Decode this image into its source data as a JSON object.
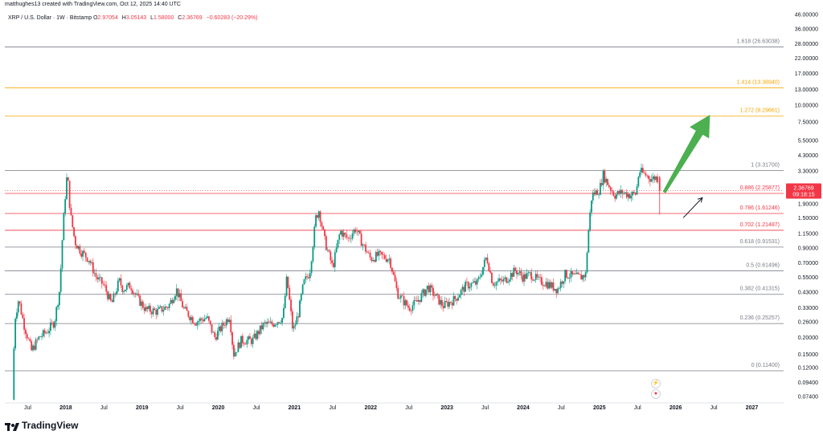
{
  "header": {
    "credit": "matthughes13 created with TradingView.com, Oct 12, 2025 14:40 UTC",
    "symbol": "XRP / U.S. Dollar · 1W · Bitstamp",
    "open_key": "O",
    "open_val": "2.97054",
    "high_key": "H",
    "high_val": "3.05143",
    "low_key": "L",
    "low_val": "1.58000",
    "close_key": "C",
    "close_val": "2.36769",
    "change": "−0.60283 (−20.29%)"
  },
  "price_tag": {
    "price": "2.36769",
    "countdown": "09:18:15"
  },
  "brand": {
    "name": "TradingView"
  },
  "colors": {
    "up": "#089981",
    "down": "#f23645",
    "fib_orange": "#f7a600",
    "arrow_green": "#4caf50"
  },
  "chart_data": {
    "type": "candlestick",
    "scale": "log",
    "ylim": [
      0.07,
      46
    ],
    "y_ticks": [
      "46.00000",
      "36.00000",
      "28.00000",
      "22.00000",
      "17.00000",
      "13.00000",
      "10.00000",
      "7.50000",
      "5.50000",
      "4.30000",
      "3.30000",
      "2.50000",
      "1.90000",
      "1.50000",
      "1.15000",
      "0.90000",
      "0.70000",
      "0.55000",
      "0.43000",
      "0.33000",
      "0.26000",
      "0.20000",
      "0.15000",
      "0.12000",
      "0.09400",
      "0.07400"
    ],
    "x_ticks": [
      "Jul",
      "2018",
      "Jul",
      "2019",
      "Jul",
      "2020",
      "Jul",
      "2021",
      "Jul",
      "2022",
      "Jul",
      "2023",
      "Jul",
      "2024",
      "Jul",
      "2025",
      "Jul",
      "2026",
      "Jul",
      "2027"
    ],
    "fib_levels": [
      {
        "label": "0 (0.11400)",
        "value": 0.114,
        "color": "#787b86"
      },
      {
        "label": "0.236 (0.25257)",
        "value": 0.25257,
        "color": "#787b86"
      },
      {
        "label": "0.382 (0.41315)",
        "value": 0.41315,
        "color": "#787b86"
      },
      {
        "label": "0.5 (0.61496)",
        "value": 0.61496,
        "color": "#787b86"
      },
      {
        "label": "0.618 (0.91531)",
        "value": 0.91531,
        "color": "#787b86"
      },
      {
        "label": "0.702 (1.21487)",
        "value": 1.21487,
        "color": "#f23645"
      },
      {
        "label": "0.786 (1.61246)",
        "value": 1.61246,
        "color": "#f23645"
      },
      {
        "label": "0.886 (2.25877)",
        "value": 2.25877,
        "color": "#f23645"
      },
      {
        "label": "1 (3.31700)",
        "value": 3.317,
        "color": "#787b86"
      },
      {
        "label": "1.272 (8.29661)",
        "value": 8.29661,
        "color": "#f7a600"
      },
      {
        "label": "1.414 (13.38940)",
        "value": 13.3894,
        "color": "#f7a600"
      },
      {
        "label": "1.618 (26.63038)",
        "value": 26.63038,
        "color": "#787b86"
      }
    ],
    "price_path": [
      {
        "t": 2017.3,
        "v": 0.07
      },
      {
        "t": 2017.33,
        "v": 0.27
      },
      {
        "t": 2017.38,
        "v": 0.38
      },
      {
        "t": 2017.45,
        "v": 0.25
      },
      {
        "t": 2017.55,
        "v": 0.16
      },
      {
        "t": 2017.65,
        "v": 0.2
      },
      {
        "t": 2017.75,
        "v": 0.22
      },
      {
        "t": 2017.85,
        "v": 0.26
      },
      {
        "t": 2017.92,
        "v": 0.45
      },
      {
        "t": 2017.96,
        "v": 1.2
      },
      {
        "t": 2018.0,
        "v": 2.5
      },
      {
        "t": 2018.02,
        "v": 3.2
      },
      {
        "t": 2018.06,
        "v": 1.6
      },
      {
        "t": 2018.12,
        "v": 1.0
      },
      {
        "t": 2018.2,
        "v": 0.85
      },
      {
        "t": 2018.3,
        "v": 0.75
      },
      {
        "t": 2018.4,
        "v": 0.55
      },
      {
        "t": 2018.5,
        "v": 0.48
      },
      {
        "t": 2018.6,
        "v": 0.35
      },
      {
        "t": 2018.7,
        "v": 0.52
      },
      {
        "t": 2018.75,
        "v": 0.45
      },
      {
        "t": 2018.85,
        "v": 0.48
      },
      {
        "t": 2018.95,
        "v": 0.38
      },
      {
        "t": 2019.05,
        "v": 0.32
      },
      {
        "t": 2019.2,
        "v": 0.31
      },
      {
        "t": 2019.35,
        "v": 0.34
      },
      {
        "t": 2019.45,
        "v": 0.45
      },
      {
        "t": 2019.55,
        "v": 0.32
      },
      {
        "t": 2019.7,
        "v": 0.26
      },
      {
        "t": 2019.85,
        "v": 0.28
      },
      {
        "t": 2019.95,
        "v": 0.2
      },
      {
        "t": 2020.05,
        "v": 0.24
      },
      {
        "t": 2020.15,
        "v": 0.29
      },
      {
        "t": 2020.2,
        "v": 0.15
      },
      {
        "t": 2020.3,
        "v": 0.19
      },
      {
        "t": 2020.45,
        "v": 0.19
      },
      {
        "t": 2020.6,
        "v": 0.25
      },
      {
        "t": 2020.7,
        "v": 0.25
      },
      {
        "t": 2020.85,
        "v": 0.28
      },
      {
        "t": 2020.9,
        "v": 0.55
      },
      {
        "t": 2020.98,
        "v": 0.22
      },
      {
        "t": 2021.05,
        "v": 0.3
      },
      {
        "t": 2021.12,
        "v": 0.5
      },
      {
        "t": 2021.2,
        "v": 0.6
      },
      {
        "t": 2021.28,
        "v": 1.5
      },
      {
        "t": 2021.32,
        "v": 1.7
      },
      {
        "t": 2021.4,
        "v": 1.0
      },
      {
        "t": 2021.5,
        "v": 0.65
      },
      {
        "t": 2021.6,
        "v": 1.2
      },
      {
        "t": 2021.7,
        "v": 1.05
      },
      {
        "t": 2021.8,
        "v": 1.25
      },
      {
        "t": 2021.9,
        "v": 0.95
      },
      {
        "t": 2022.0,
        "v": 0.75
      },
      {
        "t": 2022.1,
        "v": 0.8
      },
      {
        "t": 2022.25,
        "v": 0.75
      },
      {
        "t": 2022.35,
        "v": 0.42
      },
      {
        "t": 2022.5,
        "v": 0.33
      },
      {
        "t": 2022.6,
        "v": 0.36
      },
      {
        "t": 2022.75,
        "v": 0.47
      },
      {
        "t": 2022.85,
        "v": 0.4
      },
      {
        "t": 2022.95,
        "v": 0.34
      },
      {
        "t": 2023.1,
        "v": 0.38
      },
      {
        "t": 2023.25,
        "v": 0.48
      },
      {
        "t": 2023.4,
        "v": 0.5
      },
      {
        "t": 2023.52,
        "v": 0.78
      },
      {
        "t": 2023.6,
        "v": 0.5
      },
      {
        "t": 2023.75,
        "v": 0.52
      },
      {
        "t": 2023.9,
        "v": 0.62
      },
      {
        "t": 2024.0,
        "v": 0.55
      },
      {
        "t": 2024.1,
        "v": 0.58
      },
      {
        "t": 2024.2,
        "v": 0.52
      },
      {
        "t": 2024.3,
        "v": 0.5
      },
      {
        "t": 2024.45,
        "v": 0.45
      },
      {
        "t": 2024.55,
        "v": 0.58
      },
      {
        "t": 2024.65,
        "v": 0.56
      },
      {
        "t": 2024.75,
        "v": 0.55
      },
      {
        "t": 2024.82,
        "v": 0.58
      },
      {
        "t": 2024.85,
        "v": 1.1
      },
      {
        "t": 2024.9,
        "v": 2.2
      },
      {
        "t": 2024.95,
        "v": 2.3
      },
      {
        "t": 2025.0,
        "v": 2.4
      },
      {
        "t": 2025.05,
        "v": 3.1
      },
      {
        "t": 2025.12,
        "v": 2.6
      },
      {
        "t": 2025.2,
        "v": 2.2
      },
      {
        "t": 2025.3,
        "v": 2.3
      },
      {
        "t": 2025.4,
        "v": 2.2
      },
      {
        "t": 2025.48,
        "v": 2.25
      },
      {
        "t": 2025.52,
        "v": 3.3
      },
      {
        "t": 2025.6,
        "v": 3.1
      },
      {
        "t": 2025.68,
        "v": 2.9
      },
      {
        "t": 2025.76,
        "v": 2.97
      },
      {
        "t": 2025.78,
        "v": 2.37
      }
    ],
    "annotations": [
      {
        "type": "arrow",
        "from": {
          "t": 2025.85,
          "v": 2.3
        },
        "to": {
          "t": 2026.45,
          "v": 8.5
        },
        "color": "#4caf50"
      },
      {
        "type": "arrow",
        "from": {
          "t": 2026.1,
          "v": 1.5
        },
        "to": {
          "t": 2026.35,
          "v": 2.1
        },
        "color": "#131722"
      }
    ],
    "grid": false,
    "legend": "none"
  }
}
